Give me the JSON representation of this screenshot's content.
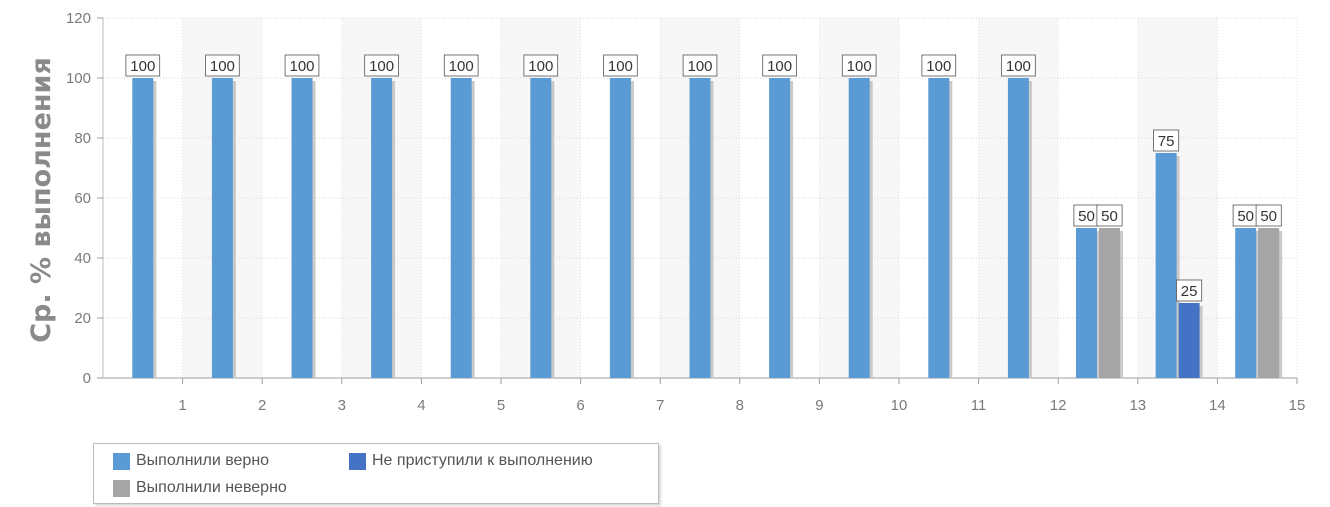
{
  "chart_data": {
    "type": "bar",
    "title": "",
    "xlabel": "",
    "ylabel": "Ср. % выполнения",
    "ylim": [
      0,
      120
    ],
    "yticks": [
      0,
      20,
      40,
      60,
      80,
      100,
      120
    ],
    "grid": true,
    "legend_position": "bottom-left",
    "categories": [
      "1",
      "2",
      "3",
      "4",
      "5",
      "6",
      "7",
      "8",
      "9",
      "10",
      "11",
      "12",
      "13",
      "14",
      "15"
    ],
    "series": [
      {
        "name": "Выполнили верно",
        "color": "#5b9bd5",
        "values": [
          100,
          100,
          100,
          100,
          100,
          100,
          100,
          100,
          100,
          100,
          100,
          100,
          50,
          75,
          50
        ]
      },
      {
        "name": "Не приступили к выполнению",
        "color": "#4472c4",
        "values": [
          null,
          null,
          null,
          null,
          null,
          null,
          null,
          null,
          null,
          null,
          null,
          null,
          null,
          25,
          null
        ]
      },
      {
        "name": "Выполнили неверно",
        "color": "#a5a5a5",
        "values": [
          null,
          null,
          null,
          null,
          null,
          null,
          null,
          null,
          null,
          null,
          null,
          null,
          50,
          null,
          50
        ]
      }
    ]
  },
  "legend": {
    "correct": "Выполнили верно",
    "not_started": "Не приступили к выполнению",
    "incorrect": "Выполнили неверно"
  }
}
